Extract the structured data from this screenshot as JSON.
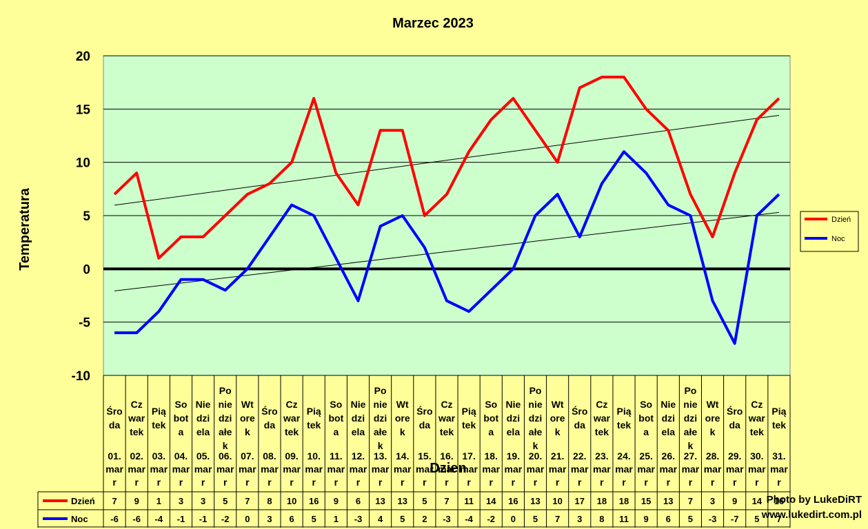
{
  "chart_data": {
    "type": "line",
    "title": "Marzec 2023",
    "xlabel": "Dzien",
    "ylabel": "Temperatura",
    "ylim": [
      -10,
      20
    ],
    "yticks": [
      -10,
      -5,
      0,
      5,
      10,
      15,
      20
    ],
    "grid": true,
    "legend_position": "right",
    "plot_background": "#ccffcc",
    "page_background": "#ffff99",
    "categories": [
      {
        "day": [
          "Śro",
          "da"
        ],
        "date": [
          "01.",
          "mar",
          "r"
        ]
      },
      {
        "day": [
          "Cz",
          "war",
          "tek"
        ],
        "date": [
          "02.",
          "mar",
          "r"
        ]
      },
      {
        "day": [
          "Pią",
          "tek"
        ],
        "date": [
          "03.",
          "mar",
          "r"
        ]
      },
      {
        "day": [
          "So",
          "bot",
          "a"
        ],
        "date": [
          "04.",
          "mar",
          "r"
        ]
      },
      {
        "day": [
          "Nie",
          "dzi",
          "ela"
        ],
        "date": [
          "05.",
          "mar",
          "r"
        ]
      },
      {
        "day": [
          "Po",
          "nie",
          "dzi",
          "ałe",
          "k"
        ],
        "date": [
          "06.",
          "mar",
          "r"
        ]
      },
      {
        "day": [
          "Wt",
          "ore",
          "k"
        ],
        "date": [
          "07.",
          "mar",
          "r"
        ]
      },
      {
        "day": [
          "Śro",
          "da"
        ],
        "date": [
          "08.",
          "mar",
          "r"
        ]
      },
      {
        "day": [
          "Cz",
          "war",
          "tek"
        ],
        "date": [
          "09.",
          "mar",
          "r"
        ]
      },
      {
        "day": [
          "Pią",
          "tek"
        ],
        "date": [
          "10.",
          "mar",
          "r"
        ]
      },
      {
        "day": [
          "So",
          "bot",
          "a"
        ],
        "date": [
          "11.",
          "mar",
          "r"
        ]
      },
      {
        "day": [
          "Nie",
          "dzi",
          "ela"
        ],
        "date": [
          "12.",
          "mar",
          "r"
        ]
      },
      {
        "day": [
          "Po",
          "nie",
          "dzi",
          "ałe",
          "k"
        ],
        "date": [
          "13.",
          "mar",
          "r"
        ]
      },
      {
        "day": [
          "Wt",
          "ore",
          "k"
        ],
        "date": [
          "14.",
          "mar",
          "r"
        ]
      },
      {
        "day": [
          "Śro",
          "da"
        ],
        "date": [
          "15.",
          "mar",
          "r"
        ]
      },
      {
        "day": [
          "Cz",
          "war",
          "tek"
        ],
        "date": [
          "16.",
          "mar",
          "r"
        ]
      },
      {
        "day": [
          "Pią",
          "tek"
        ],
        "date": [
          "17.",
          "mar",
          "r"
        ]
      },
      {
        "day": [
          "So",
          "bot",
          "a"
        ],
        "date": [
          "18.",
          "mar",
          "r"
        ]
      },
      {
        "day": [
          "Nie",
          "dzi",
          "ela"
        ],
        "date": [
          "19.",
          "mar",
          "r"
        ]
      },
      {
        "day": [
          "Po",
          "nie",
          "dzi",
          "ałe",
          "k"
        ],
        "date": [
          "20.",
          "mar",
          "r"
        ]
      },
      {
        "day": [
          "Wt",
          "ore",
          "k"
        ],
        "date": [
          "21.",
          "mar",
          "r"
        ]
      },
      {
        "day": [
          "Śro",
          "da"
        ],
        "date": [
          "22.",
          "mar",
          "r"
        ]
      },
      {
        "day": [
          "Cz",
          "war",
          "tek"
        ],
        "date": [
          "23.",
          "mar",
          "r"
        ]
      },
      {
        "day": [
          "Pią",
          "tek"
        ],
        "date": [
          "24.",
          "mar",
          "r"
        ]
      },
      {
        "day": [
          "So",
          "bot",
          "a"
        ],
        "date": [
          "25.",
          "mar",
          "r"
        ]
      },
      {
        "day": [
          "Nie",
          "dzi",
          "ela"
        ],
        "date": [
          "26.",
          "mar",
          "r"
        ]
      },
      {
        "day": [
          "Po",
          "nie",
          "dzi",
          "ałe",
          "k"
        ],
        "date": [
          "27.",
          "mar",
          "r"
        ]
      },
      {
        "day": [
          "Wt",
          "ore",
          "k"
        ],
        "date": [
          "28.",
          "mar",
          "r"
        ]
      },
      {
        "day": [
          "Śro",
          "da"
        ],
        "date": [
          "29.",
          "mar",
          "r"
        ]
      },
      {
        "day": [
          "Cz",
          "war",
          "tek"
        ],
        "date": [
          "30.",
          "mar",
          "r"
        ]
      },
      {
        "day": [
          "Pią",
          "tek"
        ],
        "date": [
          "31.",
          "mar",
          "r"
        ]
      }
    ],
    "series": [
      {
        "name": "Dzień",
        "color": "#ff0000",
        "values": [
          7,
          9,
          1,
          3,
          3,
          5,
          7,
          8,
          10,
          16,
          9,
          6,
          13,
          13,
          5,
          7,
          11,
          14,
          16,
          13,
          10,
          17,
          18,
          18,
          15,
          13,
          7,
          3,
          9,
          14,
          16
        ]
      },
      {
        "name": "Noc",
        "color": "#0000ff",
        "values": [
          -6,
          -6,
          -4,
          -1,
          -1,
          -2,
          0,
          3,
          6,
          5,
          1,
          -3,
          4,
          5,
          2,
          -3,
          -4,
          -2,
          0,
          5,
          7,
          3,
          8,
          11,
          9,
          6,
          5,
          -3,
          -7,
          5,
          7
        ]
      }
    ],
    "trendlines": "linear (one per series, thin black)",
    "watermark": [
      "Photo by LukeDiRT",
      "www.lukedirt.com.pl"
    ]
  }
}
